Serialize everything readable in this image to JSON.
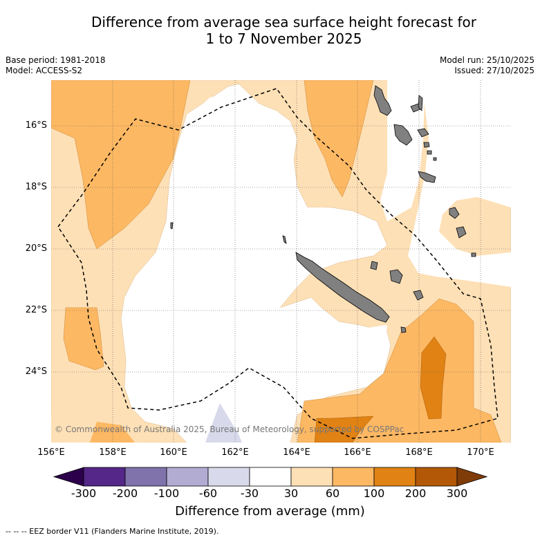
{
  "title_line1": "Difference from average sea surface height forecast for",
  "title_line2": "1 to 7 November 2025",
  "meta_left": {
    "base_period": "Base period: 1981-2018",
    "model": "Model: ACCESS-S2"
  },
  "meta_right": {
    "model_run": "Model run: 25/10/2025",
    "issued": "Issued: 27/10/2025"
  },
  "lat_labels": [
    "16°S",
    "18°S",
    "20°S",
    "22°S",
    "24°S"
  ],
  "lon_labels": [
    "156°E",
    "158°E",
    "160°E",
    "162°E",
    "164°E",
    "166°E",
    "168°E",
    "170°E"
  ],
  "copyright": "© Commonwealth of Australia 2025, Bureau of Meteorology, supported by COSPPac",
  "colorbar": {
    "ticks": [
      "-300",
      "-200",
      "-100",
      "-60",
      "-30",
      "30",
      "60",
      "100",
      "200",
      "300"
    ],
    "colors": [
      "#2d004b",
      "#542788",
      "#8073ac",
      "#b2abd2",
      "#d8daeb",
      "#ffffff",
      "#fee0b6",
      "#fdb863",
      "#e08214",
      "#b35806",
      "#7f3b08"
    ],
    "title": "Difference from average (mm)"
  },
  "legend_note": "-- -- -- EEZ border V11 (Flanders Marine Institute, 2019).",
  "map_colors": {
    "land": "#808080",
    "pale_orange": "#fee0b6",
    "orange": "#fdb863",
    "dark_orange": "#e08214",
    "lavender": "#d8daeb",
    "eez": "#000000"
  }
}
